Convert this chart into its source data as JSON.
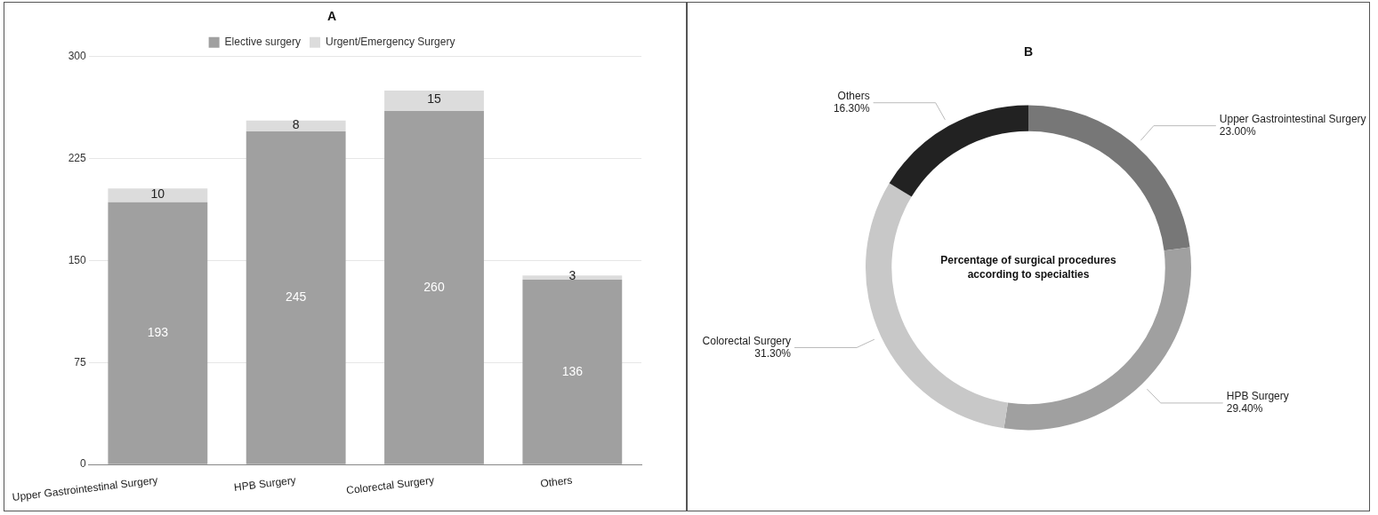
{
  "chart_data": [
    {
      "type": "bar",
      "title": "A",
      "stacked": true,
      "categories": [
        "Upper Gastrointestinal Surgery",
        "HPB Surgery",
        "Colorectal Surgery",
        "Others"
      ],
      "series": [
        {
          "name": "Elective surgery",
          "color": "#a0a0a0",
          "values": [
            193,
            245,
            260,
            136
          ]
        },
        {
          "name": "Urgent/Emergency Surgery",
          "color": "#dcdcdc",
          "values": [
            10,
            8,
            15,
            3
          ]
        }
      ],
      "ylim": [
        0,
        300
      ],
      "yticks": [
        0,
        75,
        150,
        225,
        300
      ],
      "grid": "y",
      "legend": "top",
      "data_labels": true
    },
    {
      "type": "donut",
      "title": "B",
      "categories": [
        "Upper Gastrointestinal Surgery",
        "HPB Surgery",
        "Colorectal Surgery",
        "Others"
      ],
      "values": [
        23.0,
        29.4,
        31.3,
        16.3
      ],
      "colors": [
        "#777777",
        "#a0a0a0",
        "#c8c8c8",
        "#222222"
      ],
      "value_labels": [
        "23.00%",
        "29.40%",
        "31.30%",
        "16.30%"
      ],
      "legend": false,
      "annotations": [
        "Percentage of surgical procedures according to specialties"
      ]
    }
  ]
}
